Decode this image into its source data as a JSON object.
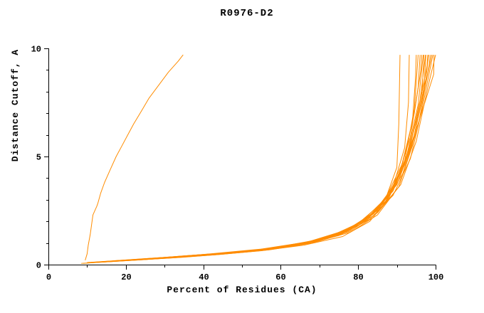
{
  "chart_data": {
    "type": "line",
    "title": "R0976-D2",
    "xlabel": "Percent of Residues (CA)",
    "ylabel": "Distance Cutoff, A",
    "xlim": [
      0,
      100
    ],
    "ylim": [
      0,
      10
    ],
    "x_major_ticks": [
      0,
      20,
      40,
      60,
      80,
      100
    ],
    "x_minor_ticks": [
      10,
      30,
      50,
      70,
      90
    ],
    "y_major_ticks": [
      0,
      5,
      10
    ],
    "y_minor_ticks": [
      1,
      2,
      3,
      4,
      6,
      7,
      8,
      9
    ],
    "grid": false,
    "legend": "none",
    "line_color": "#ff8c00",
    "axis_color": "#000000",
    "series": [
      {
        "points": [
          [
            9.5,
            0.2
          ],
          [
            10,
            0.5
          ],
          [
            10.3,
            0.9
          ],
          [
            10.8,
            1.4
          ],
          [
            11.2,
            1.9
          ],
          [
            11.5,
            2.3
          ],
          [
            12.5,
            2.7
          ],
          [
            12.8,
            2.85
          ],
          [
            13.5,
            3.3
          ],
          [
            14.5,
            3.8
          ],
          [
            16,
            4.4
          ],
          [
            17.5,
            5.0
          ],
          [
            19,
            5.5
          ],
          [
            20.5,
            6.0
          ],
          [
            22,
            6.5
          ],
          [
            24,
            7.1
          ],
          [
            26,
            7.7
          ],
          [
            28.5,
            8.3
          ],
          [
            31,
            8.9
          ],
          [
            33.5,
            9.4
          ],
          [
            34.8,
            9.7
          ]
        ]
      },
      {
        "points": [
          [
            10,
            0.08
          ],
          [
            20,
            0.2
          ],
          [
            32,
            0.32
          ],
          [
            44,
            0.48
          ],
          [
            56,
            0.68
          ],
          [
            66,
            0.95
          ],
          [
            75,
            1.35
          ],
          [
            82,
            2.0
          ],
          [
            87,
            3.0
          ],
          [
            90,
            4.5
          ],
          [
            90.5,
            6.5
          ],
          [
            90.8,
            9.7
          ]
        ]
      },
      {
        "points": [
          [
            12,
            0.1
          ],
          [
            24,
            0.22
          ],
          [
            36,
            0.38
          ],
          [
            48,
            0.55
          ],
          [
            60,
            0.78
          ],
          [
            70,
            1.1
          ],
          [
            78,
            1.6
          ],
          [
            84,
            2.4
          ],
          [
            89,
            3.6
          ],
          [
            92,
            5.4
          ],
          [
            93,
            7.5
          ],
          [
            93.2,
            9.7
          ]
        ]
      },
      {
        "points": [
          [
            14,
            0.12
          ],
          [
            27,
            0.26
          ],
          [
            40,
            0.42
          ],
          [
            52,
            0.6
          ],
          [
            64,
            0.88
          ],
          [
            74,
            1.3
          ],
          [
            81,
            1.9
          ],
          [
            87,
            2.9
          ],
          [
            91,
            4.4
          ],
          [
            94,
            6.6
          ],
          [
            94.8,
            8.6
          ],
          [
            95,
            9.7
          ]
        ]
      },
      {
        "points": [
          [
            9,
            0.06
          ],
          [
            19,
            0.18
          ],
          [
            31,
            0.3
          ],
          [
            43,
            0.45
          ],
          [
            55,
            0.64
          ],
          [
            66,
            0.9
          ],
          [
            76,
            1.3
          ],
          [
            83,
            2.0
          ],
          [
            88,
            3.1
          ],
          [
            92,
            4.8
          ],
          [
            94.5,
            7.2
          ],
          [
            95.5,
            9.7
          ]
        ]
      },
      {
        "points": [
          [
            11,
            0.1
          ],
          [
            23,
            0.24
          ],
          [
            35,
            0.4
          ],
          [
            47,
            0.56
          ],
          [
            59,
            0.78
          ],
          [
            69,
            1.1
          ],
          [
            78,
            1.65
          ],
          [
            85,
            2.55
          ],
          [
            90,
            3.9
          ],
          [
            93.5,
            5.9
          ],
          [
            95.5,
            8.2
          ],
          [
            96,
            9.7
          ]
        ]
      },
      {
        "points": [
          [
            13,
            0.12
          ],
          [
            26,
            0.28
          ],
          [
            39,
            0.44
          ],
          [
            51,
            0.62
          ],
          [
            63,
            0.9
          ],
          [
            73,
            1.3
          ],
          [
            81,
            2.0
          ],
          [
            87,
            3.05
          ],
          [
            91.5,
            4.7
          ],
          [
            94.5,
            7.0
          ],
          [
            96.2,
            9.0
          ],
          [
            96.4,
            9.7
          ]
        ]
      },
      {
        "points": [
          [
            15,
            0.14
          ],
          [
            28,
            0.3
          ],
          [
            41,
            0.46
          ],
          [
            53,
            0.66
          ],
          [
            65,
            0.95
          ],
          [
            75,
            1.4
          ],
          [
            82,
            2.1
          ],
          [
            88,
            3.2
          ],
          [
            92.5,
            5.0
          ],
          [
            95.5,
            7.4
          ],
          [
            96.8,
            9.7
          ]
        ]
      },
      {
        "points": [
          [
            10,
            0.1
          ],
          [
            22,
            0.24
          ],
          [
            34,
            0.38
          ],
          [
            46,
            0.54
          ],
          [
            58,
            0.74
          ],
          [
            68,
            1.05
          ],
          [
            77,
            1.55
          ],
          [
            84,
            2.35
          ],
          [
            89.5,
            3.6
          ],
          [
            93.5,
            5.5
          ],
          [
            96.5,
            8.0
          ],
          [
            97,
            9.7
          ]
        ]
      },
      {
        "points": [
          [
            16,
            0.16
          ],
          [
            29,
            0.3
          ],
          [
            42,
            0.48
          ],
          [
            54,
            0.68
          ],
          [
            66,
            1.0
          ],
          [
            76,
            1.5
          ],
          [
            83,
            2.25
          ],
          [
            89,
            3.4
          ],
          [
            93,
            5.2
          ],
          [
            96,
            7.6
          ],
          [
            97.4,
            9.7
          ]
        ]
      },
      {
        "points": [
          [
            8.5,
            0.06
          ],
          [
            20,
            0.18
          ],
          [
            33,
            0.32
          ],
          [
            45,
            0.48
          ],
          [
            57,
            0.68
          ],
          [
            68,
            1.0
          ],
          [
            78,
            1.5
          ],
          [
            85,
            2.3
          ],
          [
            90.5,
            3.6
          ],
          [
            94,
            5.5
          ],
          [
            97,
            8.2
          ],
          [
            97.5,
            9.7
          ]
        ]
      },
      {
        "points": [
          [
            12,
            0.1
          ],
          [
            25,
            0.26
          ],
          [
            38,
            0.42
          ],
          [
            50,
            0.6
          ],
          [
            62,
            0.85
          ],
          [
            72,
            1.25
          ],
          [
            80,
            1.9
          ],
          [
            86.5,
            2.9
          ],
          [
            91.5,
            4.4
          ],
          [
            95,
            6.6
          ],
          [
            97.8,
            9.2
          ],
          [
            98,
            9.7
          ]
        ]
      },
      {
        "points": [
          [
            17,
            0.18
          ],
          [
            30,
            0.34
          ],
          [
            44,
            0.52
          ],
          [
            57,
            0.74
          ],
          [
            68,
            1.1
          ],
          [
            78,
            1.65
          ],
          [
            85,
            2.5
          ],
          [
            90.5,
            3.9
          ],
          [
            94.5,
            6.0
          ],
          [
            97.5,
            8.6
          ],
          [
            98.2,
            9.7
          ]
        ]
      },
      {
        "points": [
          [
            10.5,
            0.1
          ],
          [
            23,
            0.24
          ],
          [
            36,
            0.4
          ],
          [
            49,
            0.58
          ],
          [
            61,
            0.82
          ],
          [
            71,
            1.2
          ],
          [
            80,
            1.8
          ],
          [
            86.5,
            2.75
          ],
          [
            91.5,
            4.2
          ],
          [
            95.5,
            6.4
          ],
          [
            98.4,
            9.3
          ],
          [
            98.6,
            9.7
          ]
        ]
      },
      {
        "points": [
          [
            14,
            0.14
          ],
          [
            28,
            0.3
          ],
          [
            42,
            0.5
          ],
          [
            55,
            0.72
          ],
          [
            67,
            1.05
          ],
          [
            77,
            1.6
          ],
          [
            84,
            2.4
          ],
          [
            90,
            3.7
          ],
          [
            94,
            5.6
          ],
          [
            97,
            8.0
          ],
          [
            99,
            9.7
          ]
        ]
      },
      {
        "points": [
          [
            13,
            0.12
          ],
          [
            26,
            0.26
          ],
          [
            40,
            0.44
          ],
          [
            53,
            0.64
          ],
          [
            65,
            0.92
          ],
          [
            75,
            1.35
          ],
          [
            83,
            2.1
          ],
          [
            89,
            3.2
          ],
          [
            93.5,
            4.9
          ],
          [
            96.5,
            7.2
          ],
          [
            99.3,
            9.7
          ]
        ]
      },
      {
        "points": [
          [
            11,
            0.1
          ],
          [
            24,
            0.25
          ],
          [
            37,
            0.42
          ],
          [
            50,
            0.6
          ],
          [
            62,
            0.86
          ],
          [
            73,
            1.28
          ],
          [
            81,
            1.95
          ],
          [
            87.5,
            3.0
          ],
          [
            92,
            4.6
          ],
          [
            96,
            6.8
          ],
          [
            99.5,
            8.8
          ],
          [
            99.6,
            9.7
          ]
        ]
      },
      {
        "points": [
          [
            16,
            0.15
          ],
          [
            30,
            0.32
          ],
          [
            43,
            0.5
          ],
          [
            56,
            0.7
          ],
          [
            68,
            1.05
          ],
          [
            78,
            1.55
          ],
          [
            85,
            2.4
          ],
          [
            91,
            3.7
          ],
          [
            95,
            5.7
          ],
          [
            98,
            8.2
          ],
          [
            100,
            9.7
          ]
        ]
      }
    ]
  }
}
